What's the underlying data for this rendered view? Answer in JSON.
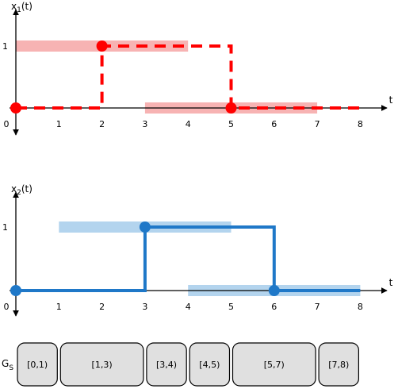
{
  "chart_data": [
    {
      "type": "line",
      "id": "x1",
      "title": "",
      "ylabel": "x1(t)",
      "xlabel": "t",
      "x_ticks": [
        "0",
        "1",
        "2",
        "3",
        "4",
        "5",
        "6",
        "7",
        "8"
      ],
      "y_ticks": [
        "1"
      ],
      "xlim": [
        0,
        8
      ],
      "ylim": [
        0,
        1
      ],
      "line_style": "dashed",
      "color": "#ff0000",
      "band_color": "#f7b3b3",
      "series": [
        {
          "x": [
            0,
            2,
            2,
            5,
            5,
            8
          ],
          "y": [
            0,
            0,
            1,
            1,
            0,
            0
          ]
        }
      ],
      "points": [
        {
          "x": 0,
          "y": 0
        },
        {
          "x": 2,
          "y": 1
        },
        {
          "x": 5,
          "y": 0
        }
      ],
      "bands": [
        {
          "x_start": 0,
          "x_end": 4,
          "y": 1
        },
        {
          "x_start": 3,
          "x_end": 7,
          "y": 0
        }
      ]
    },
    {
      "type": "line",
      "id": "x2",
      "title": "",
      "ylabel": "x2(t)",
      "xlabel": "t",
      "x_ticks": [
        "0",
        "1",
        "2",
        "3",
        "4",
        "5",
        "6",
        "7",
        "8"
      ],
      "y_ticks": [
        "1"
      ],
      "xlim": [
        0,
        8
      ],
      "ylim": [
        0,
        1
      ],
      "line_style": "solid",
      "color": "#1f78c8",
      "band_color": "#b3d4ee",
      "series": [
        {
          "x": [
            0,
            3,
            3,
            6,
            6,
            8
          ],
          "y": [
            0,
            0,
            1,
            1,
            0,
            0
          ]
        }
      ],
      "points": [
        {
          "x": 0,
          "y": 0
        },
        {
          "x": 3,
          "y": 1
        },
        {
          "x": 6,
          "y": 0
        }
      ],
      "bands": [
        {
          "x_start": 1,
          "x_end": 5,
          "y": 1
        },
        {
          "x_start": 4,
          "x_end": 8,
          "y": 0
        }
      ]
    }
  ],
  "segments": {
    "label_main": "G",
    "label_sub": "S",
    "fill": "#e0e0e0",
    "items": [
      {
        "label": "[0,1)",
        "start": 0,
        "end": 1
      },
      {
        "label": "[1,3)",
        "start": 1,
        "end": 3
      },
      {
        "label": "[3,4)",
        "start": 3,
        "end": 4
      },
      {
        "label": "[4,5)",
        "start": 4,
        "end": 5
      },
      {
        "label": "[5,7)",
        "start": 5,
        "end": 7
      },
      {
        "label": "[7,8)",
        "start": 7,
        "end": 8
      }
    ]
  }
}
